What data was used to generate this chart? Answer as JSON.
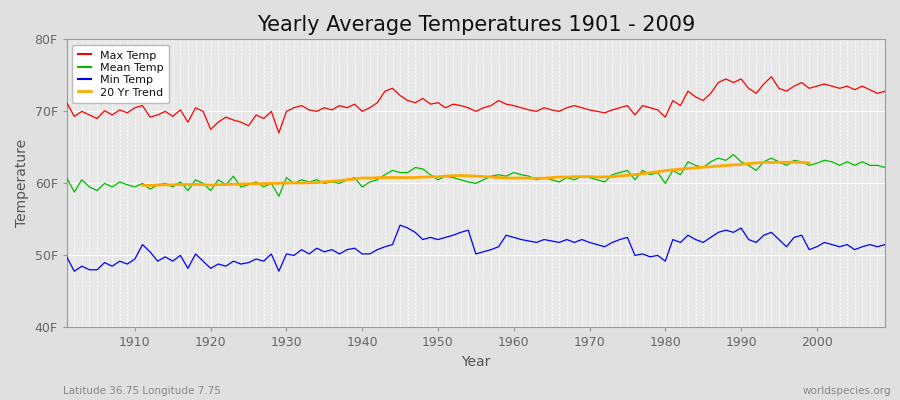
{
  "title": "Yearly Average Temperatures 1901 - 2009",
  "xlabel": "Year",
  "ylabel": "Temperature",
  "bottom_left": "Latitude 36.75 Longitude 7.75",
  "bottom_right": "worldspecies.org",
  "years": [
    1901,
    1902,
    1903,
    1904,
    1905,
    1906,
    1907,
    1908,
    1909,
    1910,
    1911,
    1912,
    1913,
    1914,
    1915,
    1916,
    1917,
    1918,
    1919,
    1920,
    1921,
    1922,
    1923,
    1924,
    1925,
    1926,
    1927,
    1928,
    1929,
    1930,
    1931,
    1932,
    1933,
    1934,
    1935,
    1936,
    1937,
    1938,
    1939,
    1940,
    1941,
    1942,
    1943,
    1944,
    1945,
    1946,
    1947,
    1948,
    1949,
    1950,
    1951,
    1952,
    1953,
    1954,
    1955,
    1956,
    1957,
    1958,
    1959,
    1960,
    1961,
    1962,
    1963,
    1964,
    1965,
    1966,
    1967,
    1968,
    1969,
    1970,
    1971,
    1972,
    1973,
    1974,
    1975,
    1976,
    1977,
    1978,
    1979,
    1980,
    1981,
    1982,
    1983,
    1984,
    1985,
    1986,
    1987,
    1988,
    1989,
    1990,
    1991,
    1992,
    1993,
    1994,
    1995,
    1996,
    1997,
    1998,
    1999,
    2000,
    2001,
    2002,
    2003,
    2004,
    2005,
    2006,
    2007,
    2008,
    2009
  ],
  "max_temp": [
    71.2,
    69.3,
    70.0,
    69.5,
    69.0,
    70.1,
    69.5,
    70.2,
    69.8,
    70.5,
    70.8,
    69.2,
    69.5,
    70.0,
    69.3,
    70.2,
    68.5,
    70.5,
    70.0,
    67.5,
    68.5,
    69.2,
    68.8,
    68.5,
    68.0,
    69.5,
    69.0,
    70.0,
    67.0,
    70.0,
    70.5,
    70.8,
    70.2,
    70.0,
    70.5,
    70.2,
    70.8,
    70.5,
    71.0,
    70.0,
    70.5,
    71.2,
    72.8,
    73.2,
    72.2,
    71.5,
    71.2,
    71.8,
    71.0,
    71.2,
    70.5,
    71.0,
    70.8,
    70.5,
    70.0,
    70.5,
    70.8,
    71.5,
    71.0,
    70.8,
    70.5,
    70.2,
    70.0,
    70.5,
    70.2,
    70.0,
    70.5,
    70.8,
    70.5,
    70.2,
    70.0,
    69.8,
    70.2,
    70.5,
    70.8,
    69.5,
    70.8,
    70.5,
    70.2,
    69.2,
    71.5,
    70.8,
    72.8,
    72.0,
    71.5,
    72.5,
    74.0,
    74.5,
    74.0,
    74.5,
    73.2,
    72.5,
    73.8,
    74.8,
    73.2,
    72.8,
    73.5,
    74.0,
    73.2,
    73.5,
    73.8,
    73.5,
    73.2,
    73.5,
    73.0,
    73.5,
    73.0,
    72.5,
    72.8
  ],
  "mean_temp": [
    60.8,
    58.8,
    60.5,
    59.5,
    59.0,
    60.0,
    59.5,
    60.2,
    59.8,
    59.5,
    60.0,
    59.2,
    59.8,
    60.0,
    59.5,
    60.2,
    59.0,
    60.5,
    60.0,
    59.0,
    60.5,
    59.8,
    61.0,
    59.5,
    59.8,
    60.2,
    59.5,
    60.0,
    58.2,
    60.8,
    60.0,
    60.5,
    60.2,
    60.5,
    60.0,
    60.2,
    60.0,
    60.5,
    60.8,
    59.5,
    60.2,
    60.5,
    61.2,
    61.8,
    61.5,
    61.5,
    62.2,
    62.0,
    61.2,
    60.5,
    61.0,
    60.8,
    60.5,
    60.2,
    60.0,
    60.5,
    61.0,
    61.2,
    61.0,
    61.5,
    61.2,
    61.0,
    60.5,
    60.8,
    60.5,
    60.2,
    60.8,
    60.5,
    61.0,
    60.8,
    60.5,
    60.2,
    61.2,
    61.5,
    61.8,
    60.5,
    61.8,
    61.2,
    61.5,
    60.0,
    61.8,
    61.2,
    63.0,
    62.5,
    62.2,
    63.0,
    63.5,
    63.2,
    64.0,
    63.0,
    62.5,
    61.8,
    63.0,
    63.5,
    63.0,
    62.5,
    63.2,
    63.0,
    62.5,
    62.8,
    63.2,
    63.0,
    62.5,
    63.0,
    62.5,
    63.0,
    62.5,
    62.5,
    62.2
  ],
  "min_temp": [
    49.8,
    47.8,
    48.5,
    48.0,
    48.0,
    49.0,
    48.5,
    49.2,
    48.8,
    49.5,
    51.5,
    50.5,
    49.2,
    49.8,
    49.2,
    50.0,
    48.2,
    50.2,
    49.2,
    48.2,
    48.8,
    48.5,
    49.2,
    48.8,
    49.0,
    49.5,
    49.2,
    50.2,
    47.8,
    50.2,
    50.0,
    50.8,
    50.2,
    51.0,
    50.5,
    50.8,
    50.2,
    50.8,
    51.0,
    50.2,
    50.2,
    50.8,
    51.2,
    51.5,
    54.2,
    53.8,
    53.2,
    52.2,
    52.5,
    52.2,
    52.5,
    52.8,
    53.2,
    53.5,
    50.2,
    50.5,
    50.8,
    51.2,
    52.8,
    52.5,
    52.2,
    52.0,
    51.8,
    52.2,
    52.0,
    51.8,
    52.2,
    51.8,
    52.2,
    51.8,
    51.5,
    51.2,
    51.8,
    52.2,
    52.5,
    50.0,
    50.2,
    49.8,
    50.0,
    49.2,
    52.2,
    51.8,
    52.8,
    52.2,
    51.8,
    52.5,
    53.2,
    53.5,
    53.2,
    53.8,
    52.2,
    51.8,
    52.8,
    53.2,
    52.2,
    51.2,
    52.5,
    52.8,
    50.8,
    51.2,
    51.8,
    51.5,
    51.2,
    51.5,
    50.8,
    51.2,
    51.5,
    51.2,
    51.5
  ],
  "bg_color": "#e0e0e0",
  "plot_bg_color": "#e8e8e8",
  "grid_color": "#cccccc",
  "max_color": "#ff0000",
  "mean_color": "#00bb00",
  "min_color": "#0000ff",
  "trend_color": "#ffaa00",
  "ylim_min": 40,
  "ylim_max": 80,
  "yticks": [
    40,
    50,
    60,
    70,
    80
  ],
  "ytick_labels": [
    "40F",
    "50F",
    "60F",
    "70F",
    "80F"
  ],
  "title_fontsize": 15,
  "axis_label_fontsize": 10,
  "tick_fontsize": 9
}
